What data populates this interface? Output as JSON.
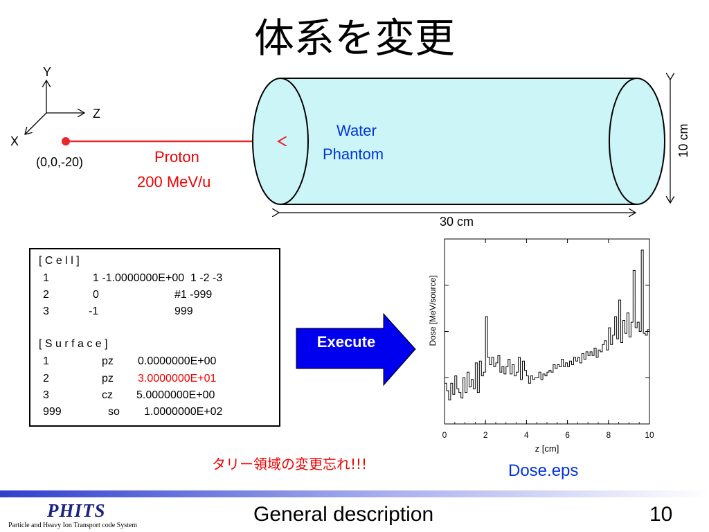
{
  "slide": {
    "title": "体系を変更"
  },
  "diagram": {
    "axes": {
      "y": "Y",
      "z": "Z",
      "x": "X"
    },
    "source_position": "(0,0,-20)",
    "beam": {
      "particle": "Proton",
      "energy": "200 MeV/u",
      "color": "#e8262b"
    },
    "phantom": {
      "line1": "Water",
      "line2": "Phantom",
      "fill": "#ccf5f8"
    },
    "length_label": "30 cm",
    "diameter_label": "10 cm"
  },
  "input_file": {
    "cell_header": "[ C e l l ]",
    "cell_rows": [
      {
        "c1": "1",
        "c2": "1 -1.0000000E+00  1 -2 -3",
        "c3": ""
      },
      {
        "c1": "2",
        "c2": "0",
        "c3": "#1 -999"
      },
      {
        "c1": "3",
        "c2": "-1",
        "c3": "999"
      }
    ],
    "surface_header": "[ S u r f a c e ]",
    "surface_rows": [
      {
        "id": "1",
        "type": "pz",
        "value": "0.0000000E+00"
      },
      {
        "id": "2",
        "type": "pz",
        "value": "3.0000000E+01"
      },
      {
        "id": "3",
        "type": "cz",
        "value": "5.0000000E+00"
      },
      {
        "id": "999",
        "type": "so",
        "value": "1.0000000E+02"
      }
    ]
  },
  "execute_label": "Execute",
  "warning": "タリー領域の変更忘れ!!!",
  "output_file": "Dose.eps",
  "chart_data": {
    "type": "line",
    "style": "step",
    "xlabel": "z [cm]",
    "ylabel": "Dose [MeV/source]",
    "xlim": [
      0,
      10
    ],
    "xticks": [
      "0",
      "2",
      "4",
      "6",
      "8",
      "10"
    ],
    "y_tick_labels_shown": false,
    "ylim": [
      0,
      1
    ],
    "series": [
      {
        "x": [
          0.0,
          0.1,
          0.2,
          0.3,
          0.4,
          0.5,
          0.6,
          0.7,
          0.8,
          0.9,
          1.0,
          1.1,
          1.2,
          1.3,
          1.4,
          1.5,
          1.6,
          1.7,
          1.8,
          1.9,
          2.0,
          2.1,
          2.2,
          2.3,
          2.4,
          2.5,
          2.6,
          2.7,
          2.8,
          2.9,
          3.0,
          3.1,
          3.2,
          3.3,
          3.4,
          3.5,
          3.6,
          3.7,
          3.8,
          3.9,
          4.0,
          4.1,
          4.2,
          4.3,
          4.4,
          4.5,
          4.6,
          4.7,
          4.8,
          4.9,
          5.0,
          5.1,
          5.2,
          5.3,
          5.4,
          5.5,
          5.6,
          5.7,
          5.8,
          5.9,
          6.0,
          6.1,
          6.2,
          6.3,
          6.4,
          6.5,
          6.6,
          6.7,
          6.8,
          6.9,
          7.0,
          7.1,
          7.2,
          7.3,
          7.4,
          7.5,
          7.6,
          7.7,
          7.8,
          7.9,
          8.0,
          8.1,
          8.2,
          8.3,
          8.4,
          8.5,
          8.6,
          8.7,
          8.8,
          8.9,
          9.0,
          9.1,
          9.2,
          9.3,
          9.4,
          9.5,
          9.6,
          9.7,
          9.8,
          9.9
        ],
        "y": [
          0.22,
          0.18,
          0.13,
          0.22,
          0.16,
          0.26,
          0.19,
          0.17,
          0.14,
          0.25,
          0.17,
          0.28,
          0.2,
          0.24,
          0.19,
          0.33,
          0.17,
          0.34,
          0.26,
          0.28,
          0.58,
          0.36,
          0.32,
          0.36,
          0.31,
          0.33,
          0.37,
          0.28,
          0.31,
          0.27,
          0.31,
          0.35,
          0.27,
          0.32,
          0.26,
          0.28,
          0.36,
          0.24,
          0.34,
          0.29,
          0.26,
          0.22,
          0.26,
          0.24,
          0.25,
          0.25,
          0.28,
          0.24,
          0.27,
          0.26,
          0.28,
          0.29,
          0.28,
          0.32,
          0.3,
          0.32,
          0.31,
          0.35,
          0.31,
          0.33,
          0.31,
          0.34,
          0.32,
          0.36,
          0.34,
          0.36,
          0.33,
          0.38,
          0.35,
          0.39,
          0.37,
          0.39,
          0.37,
          0.41,
          0.36,
          0.4,
          0.39,
          0.43,
          0.45,
          0.4,
          0.52,
          0.43,
          0.48,
          0.58,
          0.46,
          0.67,
          0.44,
          0.56,
          0.49,
          0.6,
          0.47,
          0.55,
          0.83,
          0.52,
          0.55,
          0.5,
          0.94,
          0.49,
          0.48,
          0.51
        ]
      }
    ]
  },
  "footer": {
    "logo_main": "PHITS",
    "logo_sub": "Particle and Heavy Ion Transport code System",
    "section": "General description",
    "page_number": "10"
  }
}
